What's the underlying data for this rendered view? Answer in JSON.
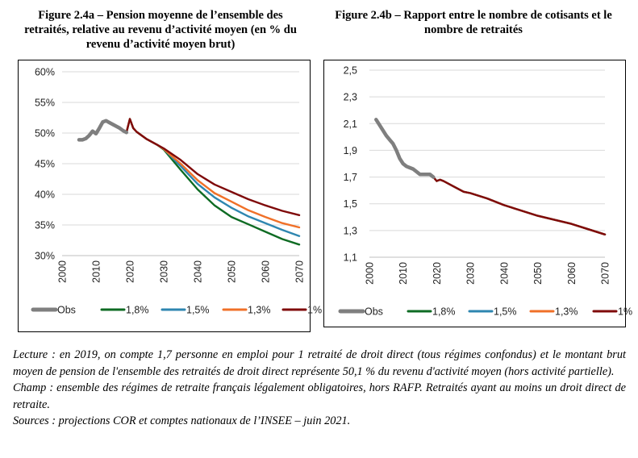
{
  "figures": [
    {
      "title": "Figure 2.4a – Pension moyenne de l’ensemble des retraités, relative au revenu d’activité moyen (en % du revenu d’activité moyen brut)"
    },
    {
      "title": "Figure 2.4b – Rapport entre le nombre de cotisants et le nombre de retraités"
    }
  ],
  "notes": {
    "lecture": "Lecture : en 2019, on compte 1,7 personne en emploi pour 1 retraité de droit direct (tous régimes confondus) et le montant brut moyen de pension de l'ensemble des retraités de droit direct représente 50,1 % du revenu d'activité moyen (hors activité partielle).",
    "champ": "Champ : ensemble des régimes de retraite français légalement obligatoires, hors RAFP. Retraités ayant au moins un droit direct de retraite.",
    "sources": "Sources : projections COR et comptes nationaux de l’INSEE – juin 2021."
  },
  "chart_data": [
    {
      "type": "line",
      "title": "Figure 2.4a – Pension moyenne de l’ensemble des retraités, relative au revenu d’activité moyen (en % du revenu d’activité moyen brut)",
      "xlabel": "",
      "ylabel": "",
      "xlim": [
        2000,
        2070
      ],
      "ylim": [
        30,
        60
      ],
      "xticks": [
        "2000",
        "2010",
        "2020",
        "2030",
        "2040",
        "2050",
        "2060",
        "2070"
      ],
      "yticks": [
        "30%",
        "35%",
        "40%",
        "45%",
        "50%",
        "55%",
        "60%"
      ],
      "grid": "horizontal",
      "legend": "bottom",
      "series": [
        {
          "name": "Obs",
          "color": "#7f7f7f",
          "x": [
            2005,
            2006,
            2007,
            2008,
            2009,
            2010,
            2011,
            2012,
            2013,
            2014,
            2015,
            2016,
            2017,
            2018,
            2019
          ],
          "y": [
            48.9,
            48.9,
            49.1,
            49.6,
            50.3,
            49.9,
            50.8,
            51.8,
            52.0,
            51.7,
            51.4,
            51.1,
            50.8,
            50.4,
            50.1
          ]
        },
        {
          "name": "1,8%",
          "color": "#0e6b23",
          "x": [
            2019,
            2020,
            2021,
            2022,
            2025,
            2028,
            2030,
            2035,
            2040,
            2045,
            2050,
            2055,
            2060,
            2065,
            2070
          ],
          "y": [
            50.1,
            52.3,
            50.8,
            50.2,
            49.0,
            48.1,
            47.3,
            44.0,
            40.8,
            38.2,
            36.3,
            35.1,
            33.9,
            32.7,
            31.8
          ]
        },
        {
          "name": "1,5%",
          "color": "#2e86b0",
          "x": [
            2019,
            2020,
            2021,
            2022,
            2025,
            2028,
            2030,
            2035,
            2040,
            2045,
            2050,
            2055,
            2060,
            2065,
            2070
          ],
          "y": [
            50.1,
            52.3,
            50.8,
            50.2,
            49.0,
            48.1,
            47.4,
            44.6,
            41.7,
            39.5,
            37.8,
            36.4,
            35.3,
            34.2,
            33.2
          ]
        },
        {
          "name": "1,3%",
          "color": "#f07028",
          "x": [
            2019,
            2020,
            2021,
            2022,
            2025,
            2028,
            2030,
            2035,
            2040,
            2045,
            2050,
            2055,
            2060,
            2065,
            2070
          ],
          "y": [
            50.1,
            52.3,
            50.8,
            50.2,
            49.0,
            48.1,
            47.4,
            45.0,
            42.3,
            40.2,
            38.8,
            37.4,
            36.3,
            35.3,
            34.6
          ]
        },
        {
          "name": "1%",
          "color": "#7f0a0a",
          "x": [
            2019,
            2020,
            2021,
            2022,
            2025,
            2028,
            2030,
            2035,
            2040,
            2045,
            2050,
            2055,
            2060,
            2065,
            2070
          ],
          "y": [
            50.1,
            52.3,
            50.8,
            50.2,
            49.0,
            48.1,
            47.5,
            45.6,
            43.3,
            41.6,
            40.4,
            39.2,
            38.2,
            37.3,
            36.6
          ]
        }
      ]
    },
    {
      "type": "line",
      "title": "Figure 2.4b – Rapport entre le nombre de cotisants et le nombre de retraités",
      "xlabel": "",
      "ylabel": "",
      "xlim": [
        2000,
        2070
      ],
      "ylim": [
        1.1,
        2.5
      ],
      "xticks": [
        "2000",
        "2010",
        "2020",
        "2030",
        "2040",
        "2050",
        "2060",
        "2070"
      ],
      "yticks": [
        "1,1",
        "1,3",
        "1,5",
        "1,7",
        "1,9",
        "2,1",
        "2,3",
        "2,5"
      ],
      "grid": "horizontal",
      "legend": "bottom",
      "series": [
        {
          "name": "Obs",
          "color": "#7f7f7f",
          "x": [
            2002,
            2003,
            2004,
            2005,
            2006,
            2007,
            2008,
            2009,
            2010,
            2011,
            2012,
            2013,
            2014,
            2015,
            2016,
            2017,
            2018,
            2019
          ],
          "y": [
            2.13,
            2.09,
            2.05,
            2.01,
            1.98,
            1.95,
            1.9,
            1.84,
            1.8,
            1.78,
            1.77,
            1.76,
            1.74,
            1.72,
            1.72,
            1.72,
            1.72,
            1.7
          ]
        },
        {
          "name": "1,8%",
          "color": "#0e6b23",
          "x": [
            2019,
            2020,
            2021,
            2022,
            2025,
            2028,
            2030,
            2035,
            2040,
            2045,
            2050,
            2055,
            2060,
            2065,
            2070
          ],
          "y": [
            1.7,
            1.67,
            1.68,
            1.67,
            1.63,
            1.59,
            1.58,
            1.54,
            1.49,
            1.45,
            1.41,
            1.38,
            1.35,
            1.31,
            1.27
          ]
        },
        {
          "name": "1,5%",
          "color": "#2e86b0",
          "x": [
            2019,
            2020,
            2021,
            2022,
            2025,
            2028,
            2030,
            2035,
            2040,
            2045,
            2050,
            2055,
            2060,
            2065,
            2070
          ],
          "y": [
            1.7,
            1.67,
            1.68,
            1.67,
            1.63,
            1.59,
            1.58,
            1.54,
            1.49,
            1.45,
            1.41,
            1.38,
            1.35,
            1.31,
            1.27
          ]
        },
        {
          "name": "1,3%",
          "color": "#f07028",
          "x": [
            2019,
            2020,
            2021,
            2022,
            2025,
            2028,
            2030,
            2035,
            2040,
            2045,
            2050,
            2055,
            2060,
            2065,
            2070
          ],
          "y": [
            1.7,
            1.67,
            1.68,
            1.67,
            1.63,
            1.59,
            1.58,
            1.54,
            1.49,
            1.45,
            1.41,
            1.38,
            1.35,
            1.31,
            1.27
          ]
        },
        {
          "name": "1%",
          "color": "#7f0a0a",
          "x": [
            2019,
            2020,
            2021,
            2022,
            2025,
            2028,
            2030,
            2035,
            2040,
            2045,
            2050,
            2055,
            2060,
            2065,
            2070
          ],
          "y": [
            1.7,
            1.67,
            1.68,
            1.67,
            1.63,
            1.59,
            1.58,
            1.54,
            1.49,
            1.45,
            1.41,
            1.38,
            1.35,
            1.31,
            1.27
          ]
        }
      ]
    }
  ]
}
